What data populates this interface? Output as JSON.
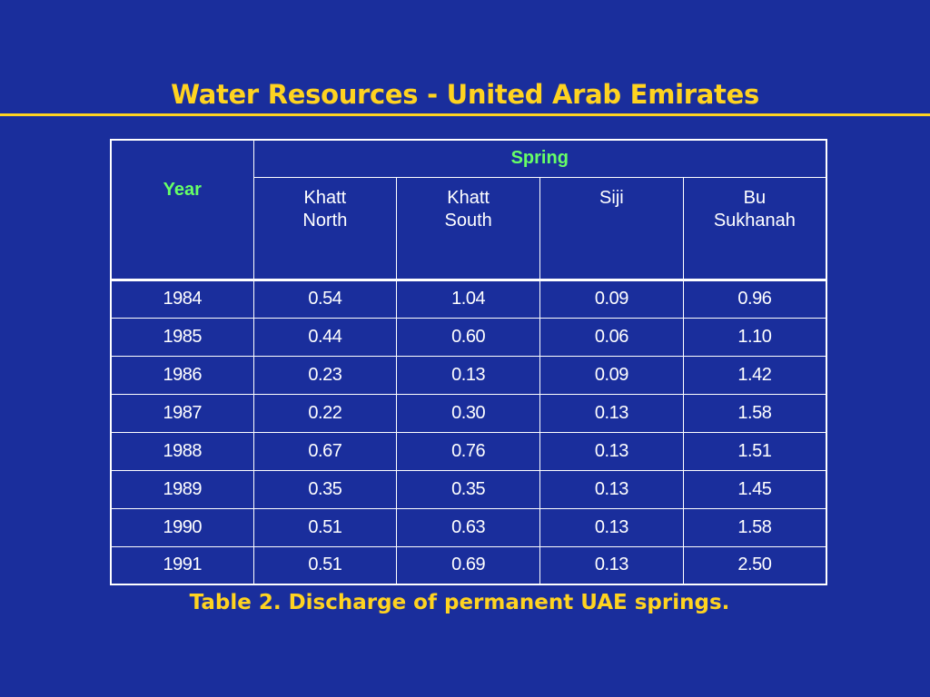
{
  "slide": {
    "title": "Water Resources - United Arab Emirates",
    "caption": "Table 2. Discharge of permanent UAE springs."
  },
  "colors": {
    "background": "#1a2e9c",
    "accent_yellow": "#ffd320",
    "header_green": "#66ff66",
    "text_white": "#ffffff"
  },
  "table": {
    "year_header": "Year",
    "group_header": "Spring",
    "columns": [
      {
        "line1": "Khatt",
        "line2": "North"
      },
      {
        "line1": "Khatt",
        "line2": "South"
      },
      {
        "line1": "Siji",
        "line2": ""
      },
      {
        "line1": "Bu",
        "line2": "Sukhanah"
      }
    ],
    "rows": [
      {
        "year": "1984",
        "values": [
          "0.54",
          "1.04",
          "0.09",
          "0.96"
        ]
      },
      {
        "year": "1985",
        "values": [
          "0.44",
          "0.60",
          "0.06",
          "1.10"
        ]
      },
      {
        "year": "1986",
        "values": [
          "0.23",
          "0.13",
          "0.09",
          "1.42"
        ]
      },
      {
        "year": "1987",
        "values": [
          "0.22",
          "0.30",
          "0.13",
          "1.58"
        ]
      },
      {
        "year": "1988",
        "values": [
          "0.67",
          "0.76",
          "0.13",
          "1.51"
        ]
      },
      {
        "year": "1989",
        "values": [
          "0.35",
          "0.35",
          "0.13",
          "1.45"
        ]
      },
      {
        "year": "1990",
        "values": [
          "0.51",
          "0.63",
          "0.13",
          "1.58"
        ]
      },
      {
        "year": "1991",
        "values": [
          "0.51",
          "0.69",
          "0.13",
          "2.50"
        ]
      }
    ]
  }
}
